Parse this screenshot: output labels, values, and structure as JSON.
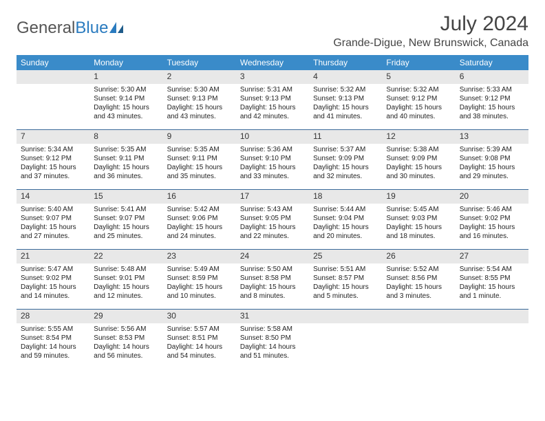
{
  "brand": {
    "part1": "General",
    "part2": "Blue"
  },
  "title": "July 2024",
  "location": "Grande-Digue, New Brunswick, Canada",
  "colors": {
    "header_bg": "#3a8bc9",
    "header_text": "#ffffff",
    "daynum_bg": "#e8e8e8",
    "week_border": "#3a6a9a",
    "logo_blue": "#2a7bbf",
    "text": "#222222"
  },
  "day_names": [
    "Sunday",
    "Monday",
    "Tuesday",
    "Wednesday",
    "Thursday",
    "Friday",
    "Saturday"
  ],
  "weeks": [
    [
      {
        "day": "",
        "sunrise": "",
        "sunset": "",
        "daylight": ""
      },
      {
        "day": "1",
        "sunrise": "Sunrise: 5:30 AM",
        "sunset": "Sunset: 9:14 PM",
        "daylight": "Daylight: 15 hours and 43 minutes."
      },
      {
        "day": "2",
        "sunrise": "Sunrise: 5:30 AM",
        "sunset": "Sunset: 9:13 PM",
        "daylight": "Daylight: 15 hours and 43 minutes."
      },
      {
        "day": "3",
        "sunrise": "Sunrise: 5:31 AM",
        "sunset": "Sunset: 9:13 PM",
        "daylight": "Daylight: 15 hours and 42 minutes."
      },
      {
        "day": "4",
        "sunrise": "Sunrise: 5:32 AM",
        "sunset": "Sunset: 9:13 PM",
        "daylight": "Daylight: 15 hours and 41 minutes."
      },
      {
        "day": "5",
        "sunrise": "Sunrise: 5:32 AM",
        "sunset": "Sunset: 9:12 PM",
        "daylight": "Daylight: 15 hours and 40 minutes."
      },
      {
        "day": "6",
        "sunrise": "Sunrise: 5:33 AM",
        "sunset": "Sunset: 9:12 PM",
        "daylight": "Daylight: 15 hours and 38 minutes."
      }
    ],
    [
      {
        "day": "7",
        "sunrise": "Sunrise: 5:34 AM",
        "sunset": "Sunset: 9:12 PM",
        "daylight": "Daylight: 15 hours and 37 minutes."
      },
      {
        "day": "8",
        "sunrise": "Sunrise: 5:35 AM",
        "sunset": "Sunset: 9:11 PM",
        "daylight": "Daylight: 15 hours and 36 minutes."
      },
      {
        "day": "9",
        "sunrise": "Sunrise: 5:35 AM",
        "sunset": "Sunset: 9:11 PM",
        "daylight": "Daylight: 15 hours and 35 minutes."
      },
      {
        "day": "10",
        "sunrise": "Sunrise: 5:36 AM",
        "sunset": "Sunset: 9:10 PM",
        "daylight": "Daylight: 15 hours and 33 minutes."
      },
      {
        "day": "11",
        "sunrise": "Sunrise: 5:37 AM",
        "sunset": "Sunset: 9:09 PM",
        "daylight": "Daylight: 15 hours and 32 minutes."
      },
      {
        "day": "12",
        "sunrise": "Sunrise: 5:38 AM",
        "sunset": "Sunset: 9:09 PM",
        "daylight": "Daylight: 15 hours and 30 minutes."
      },
      {
        "day": "13",
        "sunrise": "Sunrise: 5:39 AM",
        "sunset": "Sunset: 9:08 PM",
        "daylight": "Daylight: 15 hours and 29 minutes."
      }
    ],
    [
      {
        "day": "14",
        "sunrise": "Sunrise: 5:40 AM",
        "sunset": "Sunset: 9:07 PM",
        "daylight": "Daylight: 15 hours and 27 minutes."
      },
      {
        "day": "15",
        "sunrise": "Sunrise: 5:41 AM",
        "sunset": "Sunset: 9:07 PM",
        "daylight": "Daylight: 15 hours and 25 minutes."
      },
      {
        "day": "16",
        "sunrise": "Sunrise: 5:42 AM",
        "sunset": "Sunset: 9:06 PM",
        "daylight": "Daylight: 15 hours and 24 minutes."
      },
      {
        "day": "17",
        "sunrise": "Sunrise: 5:43 AM",
        "sunset": "Sunset: 9:05 PM",
        "daylight": "Daylight: 15 hours and 22 minutes."
      },
      {
        "day": "18",
        "sunrise": "Sunrise: 5:44 AM",
        "sunset": "Sunset: 9:04 PM",
        "daylight": "Daylight: 15 hours and 20 minutes."
      },
      {
        "day": "19",
        "sunrise": "Sunrise: 5:45 AM",
        "sunset": "Sunset: 9:03 PM",
        "daylight": "Daylight: 15 hours and 18 minutes."
      },
      {
        "day": "20",
        "sunrise": "Sunrise: 5:46 AM",
        "sunset": "Sunset: 9:02 PM",
        "daylight": "Daylight: 15 hours and 16 minutes."
      }
    ],
    [
      {
        "day": "21",
        "sunrise": "Sunrise: 5:47 AM",
        "sunset": "Sunset: 9:02 PM",
        "daylight": "Daylight: 15 hours and 14 minutes."
      },
      {
        "day": "22",
        "sunrise": "Sunrise: 5:48 AM",
        "sunset": "Sunset: 9:01 PM",
        "daylight": "Daylight: 15 hours and 12 minutes."
      },
      {
        "day": "23",
        "sunrise": "Sunrise: 5:49 AM",
        "sunset": "Sunset: 8:59 PM",
        "daylight": "Daylight: 15 hours and 10 minutes."
      },
      {
        "day": "24",
        "sunrise": "Sunrise: 5:50 AM",
        "sunset": "Sunset: 8:58 PM",
        "daylight": "Daylight: 15 hours and 8 minutes."
      },
      {
        "day": "25",
        "sunrise": "Sunrise: 5:51 AM",
        "sunset": "Sunset: 8:57 PM",
        "daylight": "Daylight: 15 hours and 5 minutes."
      },
      {
        "day": "26",
        "sunrise": "Sunrise: 5:52 AM",
        "sunset": "Sunset: 8:56 PM",
        "daylight": "Daylight: 15 hours and 3 minutes."
      },
      {
        "day": "27",
        "sunrise": "Sunrise: 5:54 AM",
        "sunset": "Sunset: 8:55 PM",
        "daylight": "Daylight: 15 hours and 1 minute."
      }
    ],
    [
      {
        "day": "28",
        "sunrise": "Sunrise: 5:55 AM",
        "sunset": "Sunset: 8:54 PM",
        "daylight": "Daylight: 14 hours and 59 minutes."
      },
      {
        "day": "29",
        "sunrise": "Sunrise: 5:56 AM",
        "sunset": "Sunset: 8:53 PM",
        "daylight": "Daylight: 14 hours and 56 minutes."
      },
      {
        "day": "30",
        "sunrise": "Sunrise: 5:57 AM",
        "sunset": "Sunset: 8:51 PM",
        "daylight": "Daylight: 14 hours and 54 minutes."
      },
      {
        "day": "31",
        "sunrise": "Sunrise: 5:58 AM",
        "sunset": "Sunset: 8:50 PM",
        "daylight": "Daylight: 14 hours and 51 minutes."
      },
      {
        "day": "",
        "sunrise": "",
        "sunset": "",
        "daylight": ""
      },
      {
        "day": "",
        "sunrise": "",
        "sunset": "",
        "daylight": ""
      },
      {
        "day": "",
        "sunrise": "",
        "sunset": "",
        "daylight": ""
      }
    ]
  ]
}
